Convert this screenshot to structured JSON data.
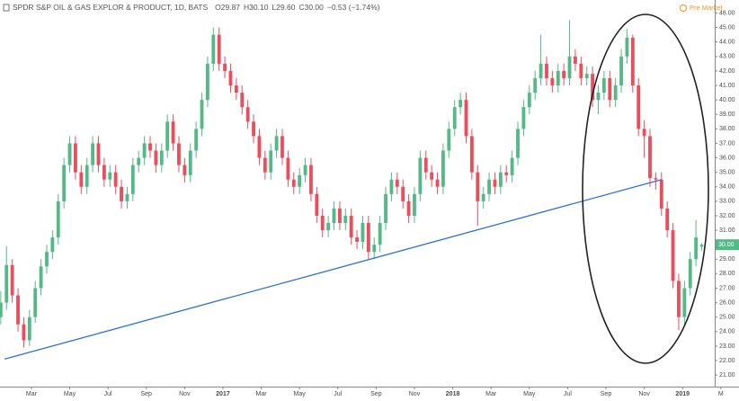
{
  "header": {
    "symbol": "SPDR S&P OIL & GAS EXPLOR & PRODUCT, 1D, BATS",
    "open": "O29.87",
    "high": "H30.10",
    "low": "L29.60",
    "close": "C30.00",
    "change": "−0.53 (−1.74%)",
    "session": "Pre Market"
  },
  "chart_data": {
    "type": "candlestick",
    "up_color": "#53b987",
    "down_color": "#eb4d5c",
    "trend_color": "#2f6fd6",
    "x": [
      0.4,
      0.7,
      1.0,
      1.3,
      1.6,
      1.9,
      2.2,
      2.5,
      2.8,
      3.1,
      3.4,
      3.7,
      4.0,
      4.3,
      4.6,
      4.9,
      5.2,
      5.5,
      5.8,
      6.1,
      6.4,
      6.7,
      7.0,
      7.3,
      7.6,
      7.9,
      8.2,
      8.5,
      8.8,
      9.1,
      9.4,
      9.7,
      10.0,
      10.3,
      10.6,
      10.9,
      11.2,
      11.5,
      11.8,
      12.1,
      12.4,
      12.7,
      13.0,
      13.3,
      13.6,
      13.9,
      14.2,
      14.5,
      14.8,
      15.1,
      15.4,
      15.7,
      16.0,
      16.3,
      16.6,
      16.9,
      17.2,
      17.5,
      17.8,
      18.1,
      18.4,
      18.7,
      19.0,
      19.3,
      19.6,
      19.9,
      20.2,
      20.5,
      20.8,
      21.1,
      21.4,
      21.7,
      22.0,
      22.3,
      22.6,
      22.9,
      23.2,
      23.5,
      23.8,
      24.1,
      24.4,
      24.7,
      25.0,
      25.3,
      25.6,
      25.9,
      26.2,
      26.5,
      26.8,
      27.1,
      27.4,
      27.7,
      28.0,
      28.3,
      28.6,
      28.9,
      29.2,
      29.5,
      29.8,
      30.1,
      30.4,
      30.7,
      31.0,
      31.3,
      31.6,
      31.9,
      32.2,
      32.5,
      32.8,
      33.1,
      33.4,
      33.7,
      34.0,
      34.3,
      34.6,
      34.9,
      35.2,
      35.5,
      35.8,
      36.1,
      36.4,
      36.7,
      37.0
    ],
    "ohlc": [
      [
        25.0,
        26.8,
        24.5,
        26.0
      ],
      [
        26.0,
        29.9,
        25.5,
        28.6
      ],
      [
        28.6,
        29.0,
        26.0,
        26.5
      ],
      [
        26.5,
        27.0,
        24.0,
        24.5
      ],
      [
        24.5,
        25.0,
        22.9,
        23.4
      ],
      [
        23.4,
        25.5,
        23.0,
        25.0
      ],
      [
        25.0,
        27.5,
        24.6,
        27.0
      ],
      [
        27.0,
        29.0,
        26.5,
        28.5
      ],
      [
        28.5,
        30.0,
        28.0,
        29.5
      ],
      [
        29.5,
        31.0,
        29.0,
        30.5
      ],
      [
        30.5,
        33.5,
        30.0,
        33.0
      ],
      [
        33.0,
        36.0,
        32.5,
        35.5
      ],
      [
        35.5,
        37.5,
        35.0,
        37.0
      ],
      [
        37.0,
        37.5,
        34.5,
        35.0
      ],
      [
        35.0,
        35.5,
        33.5,
        34.0
      ],
      [
        34.0,
        36.0,
        33.5,
        35.5
      ],
      [
        35.5,
        37.5,
        35.0,
        37.0
      ],
      [
        37.0,
        37.5,
        35.0,
        35.5
      ],
      [
        35.5,
        36.0,
        34.0,
        34.5
      ],
      [
        34.5,
        35.5,
        34.0,
        35.0
      ],
      [
        35.0,
        35.5,
        33.5,
        34.0
      ],
      [
        34.0,
        34.5,
        32.5,
        33.0
      ],
      [
        33.0,
        34.0,
        32.5,
        33.5
      ],
      [
        33.5,
        36.0,
        33.0,
        35.5
      ],
      [
        35.5,
        36.5,
        35.0,
        36.0
      ],
      [
        36.0,
        37.5,
        35.5,
        37.0
      ],
      [
        37.0,
        37.5,
        36.0,
        36.5
      ],
      [
        36.5,
        37.0,
        35.0,
        35.5
      ],
      [
        35.5,
        37.0,
        35.0,
        36.5
      ],
      [
        36.5,
        39.0,
        36.0,
        38.5
      ],
      [
        38.5,
        39.0,
        36.5,
        37.0
      ],
      [
        37.0,
        37.5,
        35.0,
        35.5
      ],
      [
        35.5,
        36.0,
        34.3,
        34.8
      ],
      [
        34.8,
        37.0,
        34.3,
        36.5
      ],
      [
        36.5,
        38.5,
        36.0,
        38.0
      ],
      [
        38.0,
        40.5,
        37.5,
        40.0
      ],
      [
        40.0,
        43.0,
        39.5,
        42.5
      ],
      [
        42.5,
        45.0,
        42.0,
        44.5
      ],
      [
        44.5,
        45.0,
        42.0,
        42.5
      ],
      [
        42.5,
        43.0,
        41.5,
        42.0
      ],
      [
        42.0,
        42.5,
        40.5,
        41.0
      ],
      [
        41.0,
        41.5,
        40.0,
        40.5
      ],
      [
        40.5,
        41.0,
        39.0,
        39.5
      ],
      [
        39.5,
        40.0,
        38.0,
        38.5
      ],
      [
        38.5,
        39.0,
        37.0,
        37.5
      ],
      [
        37.5,
        38.0,
        35.5,
        36.0
      ],
      [
        36.0,
        36.5,
        34.5,
        35.0
      ],
      [
        35.0,
        37.0,
        34.5,
        36.5
      ],
      [
        36.5,
        38.0,
        36.0,
        37.5
      ],
      [
        37.5,
        38.0,
        35.5,
        36.0
      ],
      [
        36.0,
        36.5,
        34.0,
        34.5
      ],
      [
        34.5,
        35.0,
        33.5,
        34.0
      ],
      [
        34.0,
        35.3,
        33.5,
        34.8
      ],
      [
        34.8,
        36.0,
        34.3,
        35.5
      ],
      [
        35.5,
        36.0,
        33.0,
        33.5
      ],
      [
        33.5,
        34.0,
        31.5,
        32.0
      ],
      [
        32.0,
        32.5,
        30.5,
        31.0
      ],
      [
        31.0,
        32.0,
        30.5,
        31.5
      ],
      [
        31.5,
        33.0,
        31.0,
        32.5
      ],
      [
        32.5,
        33.0,
        31.0,
        31.5
      ],
      [
        31.5,
        32.5,
        31.0,
        32.0
      ],
      [
        32.0,
        32.5,
        30.0,
        30.5
      ],
      [
        30.5,
        31.0,
        29.7,
        30.2
      ],
      [
        30.2,
        32.0,
        29.7,
        31.5
      ],
      [
        31.5,
        32.0,
        29.0,
        29.5
      ],
      [
        29.5,
        30.5,
        29.0,
        30.0
      ],
      [
        30.0,
        32.0,
        29.5,
        31.5
      ],
      [
        31.5,
        34.0,
        31.0,
        33.5
      ],
      [
        33.5,
        35.0,
        33.0,
        34.5
      ],
      [
        34.5,
        35.0,
        33.5,
        34.0
      ],
      [
        34.0,
        34.5,
        32.5,
        33.0
      ],
      [
        33.0,
        33.5,
        31.5,
        32.0
      ],
      [
        32.0,
        34.0,
        31.5,
        33.5
      ],
      [
        33.5,
        36.5,
        33.0,
        36.0
      ],
      [
        36.0,
        36.5,
        34.5,
        35.0
      ],
      [
        35.0,
        35.5,
        34.0,
        34.5
      ],
      [
        34.5,
        35.0,
        33.5,
        34.0
      ],
      [
        34.0,
        37.0,
        33.5,
        36.5
      ],
      [
        36.5,
        38.5,
        36.0,
        38.0
      ],
      [
        38.0,
        40.0,
        37.5,
        39.5
      ],
      [
        39.5,
        40.5,
        39.0,
        40.0
      ],
      [
        40.0,
        40.5,
        37.0,
        37.5
      ],
      [
        37.5,
        38.0,
        34.5,
        35.0
      ],
      [
        35.0,
        35.5,
        31.3,
        33.0
      ],
      [
        33.0,
        34.0,
        32.5,
        33.5
      ],
      [
        33.5,
        35.0,
        33.0,
        34.5
      ],
      [
        34.5,
        35.0,
        33.5,
        34.0
      ],
      [
        34.0,
        35.5,
        33.5,
        35.0
      ],
      [
        35.0,
        35.5,
        34.3,
        34.8
      ],
      [
        34.8,
        36.5,
        34.3,
        36.0
      ],
      [
        36.0,
        38.5,
        35.5,
        38.0
      ],
      [
        38.0,
        40.0,
        37.5,
        39.5
      ],
      [
        39.5,
        41.0,
        39.0,
        40.5
      ],
      [
        40.5,
        42.0,
        40.0,
        41.5
      ],
      [
        41.5,
        44.5,
        41.0,
        42.5
      ],
      [
        42.5,
        43.0,
        41.0,
        41.5
      ],
      [
        41.5,
        42.0,
        40.5,
        41.0
      ],
      [
        41.0,
        42.5,
        40.5,
        42.0
      ],
      [
        42.0,
        42.5,
        41.0,
        41.5
      ],
      [
        41.5,
        45.5,
        41.0,
        43.0
      ],
      [
        43.0,
        43.5,
        42.0,
        42.5
      ],
      [
        42.5,
        43.0,
        41.0,
        41.5
      ],
      [
        41.5,
        42.3,
        41.0,
        41.8
      ],
      [
        41.8,
        42.3,
        39.5,
        40.0
      ],
      [
        40.0,
        41.0,
        39.0,
        40.5
      ],
      [
        40.5,
        42.0,
        40.0,
        41.5
      ],
      [
        41.5,
        42.0,
        39.5,
        40.0
      ],
      [
        40.0,
        41.5,
        39.5,
        41.0
      ],
      [
        41.0,
        43.5,
        40.5,
        43.0
      ],
      [
        43.0,
        44.9,
        42.5,
        44.3
      ],
      [
        44.3,
        44.5,
        40.5,
        41.0
      ],
      [
        41.0,
        41.5,
        37.5,
        38.0
      ],
      [
        38.0,
        38.6,
        36.0,
        37.5
      ],
      [
        37.5,
        38.0,
        34.0,
        34.6
      ],
      [
        34.6,
        35.0,
        33.8,
        34.5
      ],
      [
        34.5,
        35.0,
        32.0,
        32.5
      ],
      [
        32.5,
        33.0,
        30.5,
        31.0
      ],
      [
        31.0,
        31.5,
        27.0,
        27.5
      ],
      [
        27.5,
        28.0,
        24.1,
        25.0
      ],
      [
        25.0,
        27.5,
        24.5,
        27.0
      ],
      [
        27.0,
        29.5,
        26.5,
        29.0
      ],
      [
        29.0,
        31.7,
        28.5,
        30.5
      ],
      [
        29.87,
        30.1,
        29.6,
        30.0
      ]
    ],
    "trendline": {
      "x": [
        0.6,
        34.9
      ],
      "y": [
        22.1,
        34.5
      ]
    },
    "price_label": {
      "value": 30,
      "label": "30.00"
    },
    "xlim": [
      0.36,
      37.68
    ],
    "xticks": [
      {
        "value": 2,
        "label": "Mar"
      },
      {
        "value": 4,
        "label": "May"
      },
      {
        "value": 6,
        "label": "Jul"
      },
      {
        "value": 8,
        "label": "Sep"
      },
      {
        "value": 10,
        "label": "Nov"
      },
      {
        "value": 12,
        "label": "2017"
      },
      {
        "value": 14,
        "label": "Mar"
      },
      {
        "value": 16,
        "label": "May"
      },
      {
        "value": 18,
        "label": "Jul"
      },
      {
        "value": 20,
        "label": "Sep"
      },
      {
        "value": 22,
        "label": "Nov"
      },
      {
        "value": 24,
        "label": "2018"
      },
      {
        "value": 26,
        "label": "Mar"
      },
      {
        "value": 28,
        "label": "May"
      },
      {
        "value": 30,
        "label": "Jul"
      },
      {
        "value": 32,
        "label": "Sep"
      },
      {
        "value": 34,
        "label": "Nov"
      },
      {
        "value": 36,
        "label": "2019"
      },
      {
        "value": 38,
        "label": "M"
      }
    ],
    "ylim": [
      20.2,
      46.9
    ],
    "yticks": [
      {
        "value": 21,
        "label": "21.00"
      },
      {
        "value": 22,
        "label": "22.00"
      },
      {
        "value": 23,
        "label": "23.00"
      },
      {
        "value": 24,
        "label": "24.00"
      },
      {
        "value": 25,
        "label": "25.00"
      },
      {
        "value": 26,
        "label": "26.00"
      },
      {
        "value": 27,
        "label": "27.00"
      },
      {
        "value": 28,
        "label": "28.00"
      },
      {
        "value": 29,
        "label": "29.00"
      },
      {
        "value": 30,
        "label": "30.00"
      },
      {
        "value": 31,
        "label": "31.00"
      },
      {
        "value": 32,
        "label": "32.00"
      },
      {
        "value": 33,
        "label": "33.00"
      },
      {
        "value": 34,
        "label": "34.00"
      },
      {
        "value": 35,
        "label": "35.00"
      },
      {
        "value": 36,
        "label": "36.00"
      },
      {
        "value": 37,
        "label": "37.00"
      },
      {
        "value": 38,
        "label": "38.00"
      },
      {
        "value": 39,
        "label": "39.00"
      },
      {
        "value": 40,
        "label": "40.00"
      },
      {
        "value": 41,
        "label": "41.00"
      },
      {
        "value": 42,
        "label": "42.00"
      },
      {
        "value": 43,
        "label": "43.00"
      },
      {
        "value": 44,
        "label": "44.00"
      },
      {
        "value": 45,
        "label": "45.00"
      },
      {
        "value": 46,
        "label": "46.00"
      }
    ]
  }
}
